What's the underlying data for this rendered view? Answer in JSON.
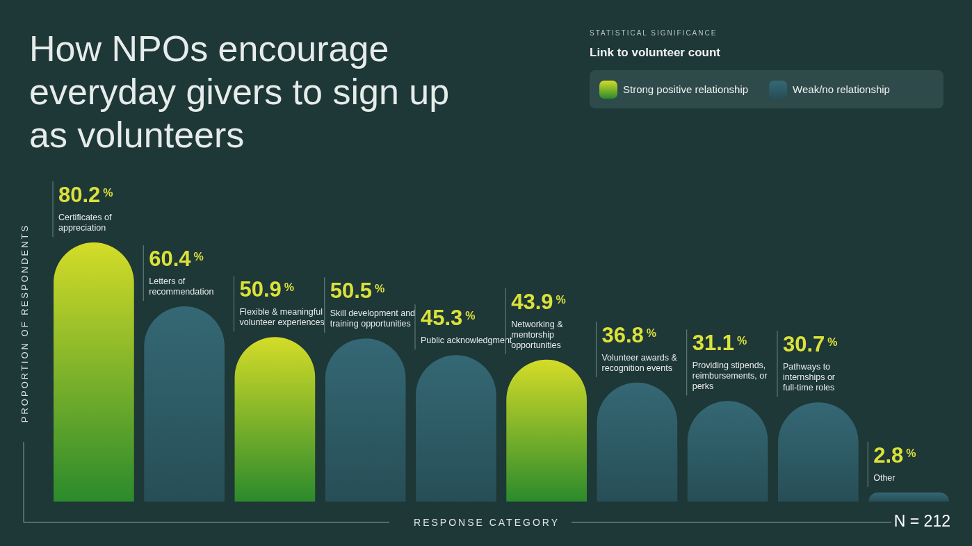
{
  "chart_data": {
    "type": "bar",
    "title": "How NPOs encourage everyday givers to sign up as volunteers",
    "xlabel": "RESPONSE CATEGORY",
    "ylabel": "PROPORTION OF RESPONDENTS",
    "legend_title": "Link to volunteer count",
    "legend": "top right",
    "categories": [
      "Certificates of appreciation",
      "Letters of recommendation",
      "Flexible & meaningful volunteer experiences",
      "Skill development and training opportunities",
      "Public acknowledgment",
      "Networking & mentorship opportunities",
      "Volunteer awards & recognition events",
      "Providing stipends, reimbursements, or perks",
      "Pathways to internships or full-time roles",
      "Other"
    ],
    "series": [
      {
        "name": "Strong positive relationship",
        "color": "#8fbf2a",
        "values": [
          80.2,
          null,
          50.9,
          null,
          null,
          43.9,
          null,
          null,
          null,
          null
        ],
        "value_labels": [
          "80.2$^{%}$",
          null,
          "50.9$^{%}$",
          null,
          null,
          "43.9$^{%}$",
          null,
          null,
          null,
          null
        ]
      },
      {
        "name": "Weak/no relationship",
        "color": "#2f5d68",
        "values": [
          null,
          60.4,
          null,
          50.5,
          45.3,
          null,
          36.8,
          31.1,
          30.7,
          2.8
        ],
        "value_labels": [
          null,
          "60.4$^{%}$",
          null,
          "50.5$^{%}$",
          "45.3$^{%}$",
          null,
          "36.8$^{%}$",
          "31.1$^{%}$",
          "30.7$^{%}$",
          "2.8$^{%}$"
        ]
      }
    ],
    "annotations": [
      "STATISTICAL SIGNIFICANCE",
      "N = 212"
    ]
  }
}
